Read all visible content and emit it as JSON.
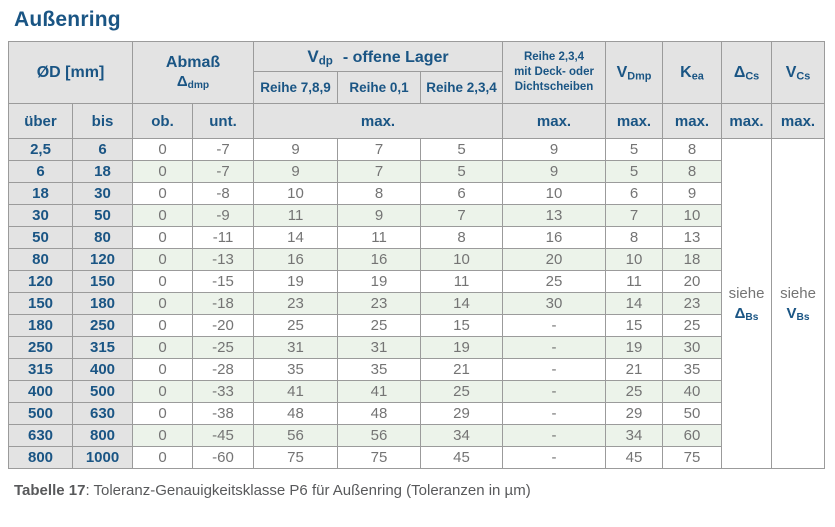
{
  "title": "Außenring",
  "caption": {
    "bold": "Tabelle 17",
    "rest": ": Toleranz-Genauigkeitsklasse P6 für Außenring (Toleranzen in µm)"
  },
  "colors": {
    "accent_blue": "#1a5584",
    "header_bg": "#e3e3e3",
    "row_green": "#ecf3ea",
    "border_gray": "#9b9b9b",
    "data_text_gray": "#747474"
  },
  "table": {
    "header": {
      "od_label": "ØD  [mm]",
      "abmass": {
        "line1": "Abmaß",
        "sym_base": "Δ",
        "sym_sub": "dmp"
      },
      "vdp": {
        "base": "V",
        "sub": "dp",
        "rest": "-  offene Lager"
      },
      "reihe_789": "Reihe 7,8,9",
      "reihe_01": "Reihe 0,1",
      "reihe_234": "Reihe 2,3,4",
      "deck": {
        "line1": "Reihe 2,3,4",
        "line2": "mit Deck- oder",
        "line3": "Dichtscheiben"
      },
      "vdmp": {
        "base": "V",
        "sub": "Dmp"
      },
      "kea": {
        "base": "K",
        "sub": "ea"
      },
      "delta_cs": {
        "base": "Δ",
        "sub": "Cs"
      },
      "v_cs": {
        "base": "V",
        "sub": "Cs"
      },
      "ueber": "über",
      "bis": "bis",
      "ob": "ob.",
      "unt": "unt.",
      "max": "max."
    },
    "see": {
      "delta_bs": {
        "word": "siehe",
        "base": "Δ",
        "sub": "Bs"
      },
      "v_bs": {
        "word": "siehe",
        "base": "V",
        "sub": "Bs"
      }
    },
    "rows": [
      [
        "2,5",
        "6",
        "0",
        "-7",
        "9",
        "7",
        "5",
        "9",
        "5",
        "8"
      ],
      [
        "6",
        "18",
        "0",
        "-7",
        "9",
        "7",
        "5",
        "9",
        "5",
        "8"
      ],
      [
        "18",
        "30",
        "0",
        "-8",
        "10",
        "8",
        "6",
        "10",
        "6",
        "9"
      ],
      [
        "30",
        "50",
        "0",
        "-9",
        "11",
        "9",
        "7",
        "13",
        "7",
        "10"
      ],
      [
        "50",
        "80",
        "0",
        "-11",
        "14",
        "11",
        "8",
        "16",
        "8",
        "13"
      ],
      [
        "80",
        "120",
        "0",
        "-13",
        "16",
        "16",
        "10",
        "20",
        "10",
        "18"
      ],
      [
        "120",
        "150",
        "0",
        "-15",
        "19",
        "19",
        "11",
        "25",
        "11",
        "20"
      ],
      [
        "150",
        "180",
        "0",
        "-18",
        "23",
        "23",
        "14",
        "30",
        "14",
        "23"
      ],
      [
        "180",
        "250",
        "0",
        "-20",
        "25",
        "25",
        "15",
        "-",
        "15",
        "25"
      ],
      [
        "250",
        "315",
        "0",
        "-25",
        "31",
        "31",
        "19",
        "-",
        "19",
        "30"
      ],
      [
        "315",
        "400",
        "0",
        "-28",
        "35",
        "35",
        "21",
        "-",
        "21",
        "35"
      ],
      [
        "400",
        "500",
        "0",
        "-33",
        "41",
        "41",
        "25",
        "-",
        "25",
        "40"
      ],
      [
        "500",
        "630",
        "0",
        "-38",
        "48",
        "48",
        "29",
        "-",
        "29",
        "50"
      ],
      [
        "630",
        "800",
        "0",
        "-45",
        "56",
        "56",
        "34",
        "-",
        "34",
        "60"
      ],
      [
        "800",
        "1000",
        "0",
        "-60",
        "75",
        "75",
        "45",
        "-",
        "45",
        "75"
      ]
    ]
  }
}
